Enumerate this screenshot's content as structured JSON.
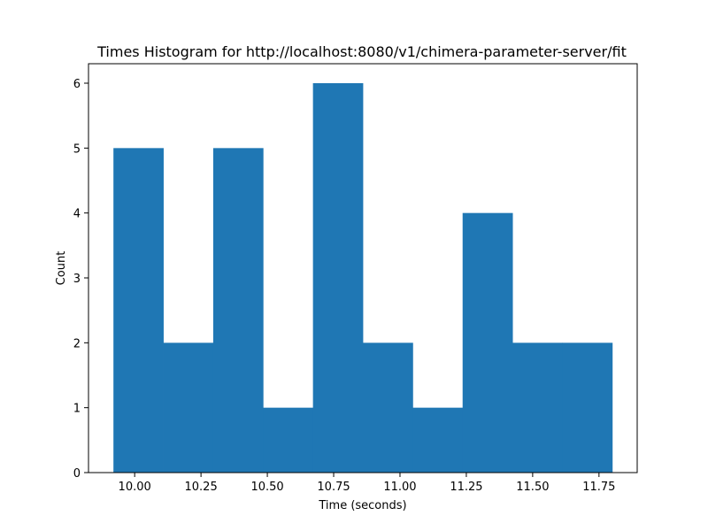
{
  "chart_data": {
    "type": "bar",
    "title": "Times Histogram for http://localhost:8080/v1/chimera-parameter-server/fit",
    "xlabel": "Time (seconds)",
    "ylabel": "Count",
    "bin_edges": [
      9.92,
      10.108,
      10.296,
      10.484,
      10.672,
      10.86,
      11.048,
      11.236,
      11.424,
      11.612,
      11.8
    ],
    "values": [
      5,
      2,
      5,
      1,
      6,
      2,
      1,
      4,
      2,
      2
    ],
    "xlim": [
      9.826,
      11.894
    ],
    "ylim": [
      0,
      6.3
    ],
    "x_ticks": [
      10.0,
      10.25,
      10.5,
      10.75,
      11.0,
      11.25,
      11.5,
      11.75
    ],
    "x_tick_labels": [
      "10.00",
      "10.25",
      "10.50",
      "10.75",
      "11.00",
      "11.25",
      "11.50",
      "11.75"
    ],
    "y_ticks": [
      0,
      1,
      2,
      3,
      4,
      5,
      6
    ],
    "y_tick_labels": [
      "0",
      "1",
      "2",
      "3",
      "4",
      "5",
      "6"
    ],
    "bar_color": "#1f77b4",
    "grid": false,
    "legend": "none"
  }
}
